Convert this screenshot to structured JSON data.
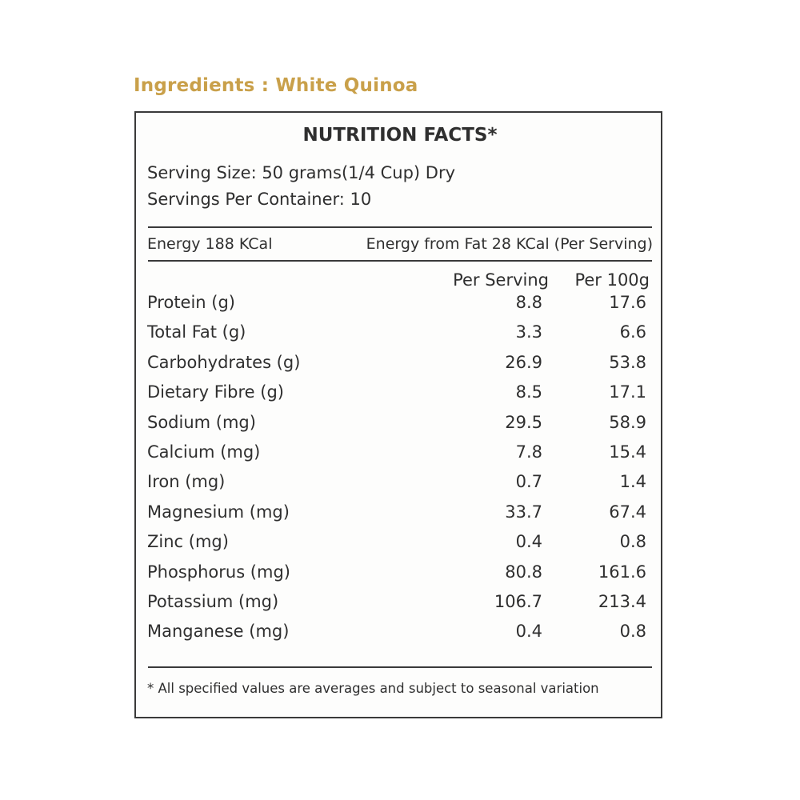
{
  "ingredients": "Ingredients : White Quinoa",
  "title": "NUTRITION FACTS*",
  "serving_size": "Serving Size: 50 grams(1/4 Cup) Dry",
  "servings_per_container": "Servings Per Container: 10",
  "energy": "Energy 188 KCal",
  "energy_from_fat": "Energy from Fat 28 KCal (Per Serving)",
  "columns": {
    "per_serving": "Per Serving",
    "per_100g": "Per 100g"
  },
  "rows": [
    {
      "name": "Protein (g)",
      "per_serving": "8.8",
      "per_100g": "17.6"
    },
    {
      "name": "Total Fat (g)",
      "per_serving": "3.3",
      "per_100g": "6.6"
    },
    {
      "name": "Carbohydrates (g)",
      "per_serving": "26.9",
      "per_100g": "53.8"
    },
    {
      "name": "Dietary Fibre (g)",
      "per_serving": "8.5",
      "per_100g": "17.1"
    },
    {
      "name": "Sodium (mg)",
      "per_serving": "29.5",
      "per_100g": "58.9"
    },
    {
      "name": "Calcium (mg)",
      "per_serving": "7.8",
      "per_100g": "15.4"
    },
    {
      "name": "Iron (mg)",
      "per_serving": "0.7",
      "per_100g": "1.4"
    },
    {
      "name": "Magnesium (mg)",
      "per_serving": "33.7",
      "per_100g": "67.4"
    },
    {
      "name": "Zinc (mg)",
      "per_serving": "0.4",
      "per_100g": "0.8"
    },
    {
      "name": "Phosphorus (mg)",
      "per_serving": "80.8",
      "per_100g": "161.6"
    },
    {
      "name": "Potassium (mg)",
      "per_serving": "106.7",
      "per_100g": "213.4"
    },
    {
      "name": "Manganese (mg)",
      "per_serving": "0.4",
      "per_100g": "0.8"
    }
  ],
  "footnote": "* All specified values are averages and subject to seasonal variation",
  "colors": {
    "ingredients_accent": "#c9a04a",
    "text": "#2f2f2f",
    "border": "#3a3a3a"
  }
}
